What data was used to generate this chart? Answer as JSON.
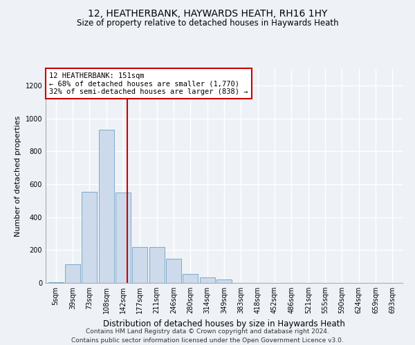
{
  "title_line1": "12, HEATHERBANK, HAYWARDS HEATH, RH16 1HY",
  "title_line2": "Size of property relative to detached houses in Haywards Heath",
  "xlabel": "Distribution of detached houses by size in Haywards Heath",
  "ylabel": "Number of detached properties",
  "bar_color": "#ccdaeb",
  "bar_edge_color": "#7aaac8",
  "categories": [
    "5sqm",
    "39sqm",
    "73sqm",
    "108sqm",
    "142sqm",
    "177sqm",
    "211sqm",
    "246sqm",
    "280sqm",
    "314sqm",
    "349sqm",
    "383sqm",
    "418sqm",
    "452sqm",
    "486sqm",
    "521sqm",
    "555sqm",
    "590sqm",
    "624sqm",
    "659sqm",
    "693sqm"
  ],
  "values": [
    5,
    115,
    555,
    930,
    550,
    220,
    220,
    145,
    55,
    35,
    20,
    0,
    0,
    0,
    0,
    0,
    0,
    0,
    0,
    0,
    0
  ],
  "ylim": [
    0,
    1300
  ],
  "yticks": [
    0,
    200,
    400,
    600,
    800,
    1000,
    1200
  ],
  "annotation_line1": "12 HEATHERBANK: 151sqm",
  "annotation_line2": "← 68% of detached houses are smaller (1,770)",
  "annotation_line3": "32% of semi-detached houses are larger (838) →",
  "annotation_box_color": "#ffffff",
  "annotation_border_color": "#cc0000",
  "vline_color": "#cc0000",
  "vline_x_index": 4.257,
  "footer_line1": "Contains HM Land Registry data © Crown copyright and database right 2024.",
  "footer_line2": "Contains public sector information licensed under the Open Government Licence v3.0.",
  "background_color": "#eef2f7",
  "grid_color": "#ffffff",
  "title1_fontsize": 10,
  "title2_fontsize": 8.5,
  "ylabel_fontsize": 8,
  "xlabel_fontsize": 8.5,
  "tick_fontsize": 7,
  "footer_fontsize": 6.5,
  "ann_fontsize": 7.5
}
